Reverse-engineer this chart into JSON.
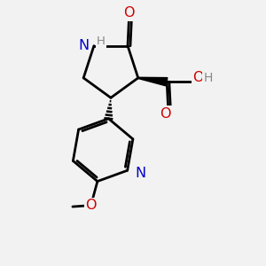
{
  "background_color": "#f2f2f2",
  "atom_colors": {
    "C": "#000000",
    "N": "#0000cc",
    "O": "#cc0000",
    "H": "#888888"
  },
  "bond_color": "#000000",
  "bond_width": 2.0,
  "figsize": [
    3.0,
    3.0
  ],
  "dpi": 100,
  "xlim": [
    0,
    10
  ],
  "ylim": [
    0,
    10
  ]
}
